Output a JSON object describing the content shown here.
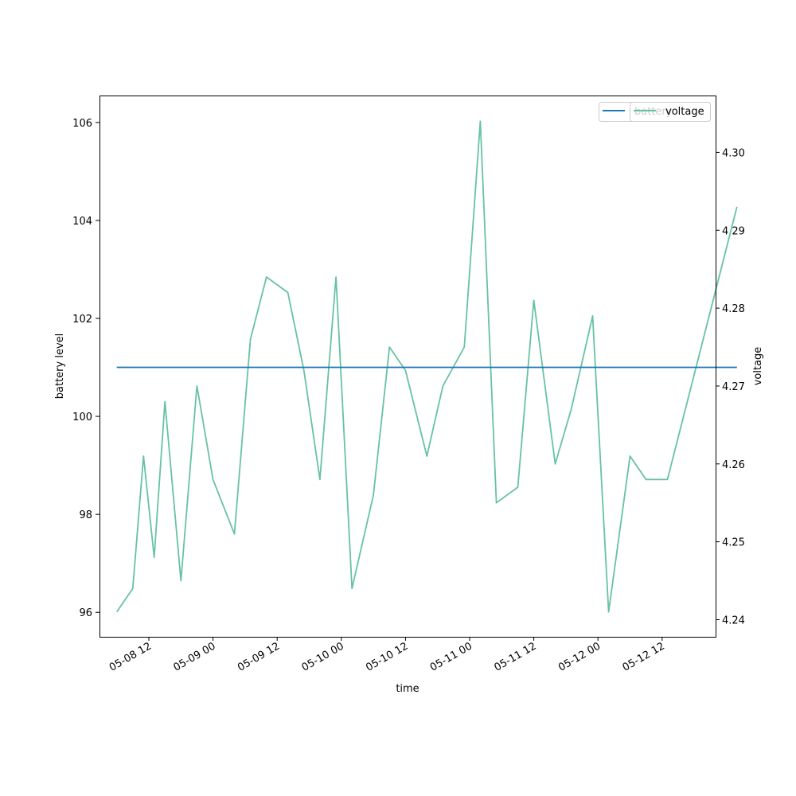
{
  "chart_data": {
    "type": "line",
    "title": "",
    "xlabel": "time",
    "ylabel_left": "battery level",
    "ylabel_right": "voltage",
    "x_tick_labels": [
      "05-08 12",
      "05-09 00",
      "05-09 12",
      "05-10 00",
      "05-10 12",
      "05-11 00",
      "05-11 12",
      "05-12 00",
      "05-12 12"
    ],
    "left_axis": {
      "ylim": [
        95.5,
        106.55
      ],
      "ticks": [
        96,
        98,
        100,
        102,
        104,
        106
      ],
      "tick_labels": [
        "96",
        "98",
        "100",
        "102",
        "104",
        "106"
      ]
    },
    "right_axis": {
      "ylim": [
        4.2378,
        4.3073
      ],
      "ticks": [
        4.24,
        4.25,
        4.26,
        4.27,
        4.28,
        4.29,
        4.3
      ],
      "tick_labels": [
        "4.24",
        "4.25",
        "4.26",
        "4.27",
        "4.28",
        "4.29",
        "4.30"
      ]
    },
    "grid": false,
    "legend_placement": "top-right",
    "series": [
      {
        "name": "battery",
        "axis": "left",
        "color": "#1f77b4",
        "x": [
          "2024-05-08 06:00",
          "2024-05-13 02:00"
        ],
        "values": [
          101,
          101
        ]
      },
      {
        "name": "voltage",
        "axis": "right",
        "color": "#66c2a5",
        "x": [
          "2024-05-08 06:00",
          "2024-05-08 09:00",
          "2024-05-08 11:00",
          "2024-05-08 13:00",
          "2024-05-08 15:00",
          "2024-05-08 18:00",
          "2024-05-08 21:00",
          "2024-05-09 00:00",
          "2024-05-09 04:00",
          "2024-05-09 07:00",
          "2024-05-09 10:00",
          "2024-05-09 14:00",
          "2024-05-09 17:00",
          "2024-05-09 20:00",
          "2024-05-09 23:00",
          "2024-05-10 02:00",
          "2024-05-10 06:00",
          "2024-05-10 09:00",
          "2024-05-10 12:00",
          "2024-05-10 16:00",
          "2024-05-10 19:00",
          "2024-05-10 23:00",
          "2024-05-11 02:00",
          "2024-05-11 05:00",
          "2024-05-11 09:00",
          "2024-05-11 12:00",
          "2024-05-11 16:00",
          "2024-05-11 19:00",
          "2024-05-11 23:00",
          "2024-05-12 02:00",
          "2024-05-12 06:00",
          "2024-05-12 09:00",
          "2024-05-12 13:00",
          "2024-05-13 02:00"
        ],
        "values": [
          4.241,
          4.244,
          4.261,
          4.248,
          4.268,
          4.245,
          4.27,
          4.258,
          4.251,
          4.276,
          4.284,
          4.282,
          4.272,
          4.258,
          4.284,
          4.244,
          4.256,
          4.275,
          4.272,
          4.261,
          4.27,
          4.275,
          4.304,
          4.255,
          4.257,
          4.281,
          4.26,
          4.267,
          4.279,
          4.241,
          4.261,
          4.258,
          4.258,
          4.293
        ]
      }
    ]
  }
}
